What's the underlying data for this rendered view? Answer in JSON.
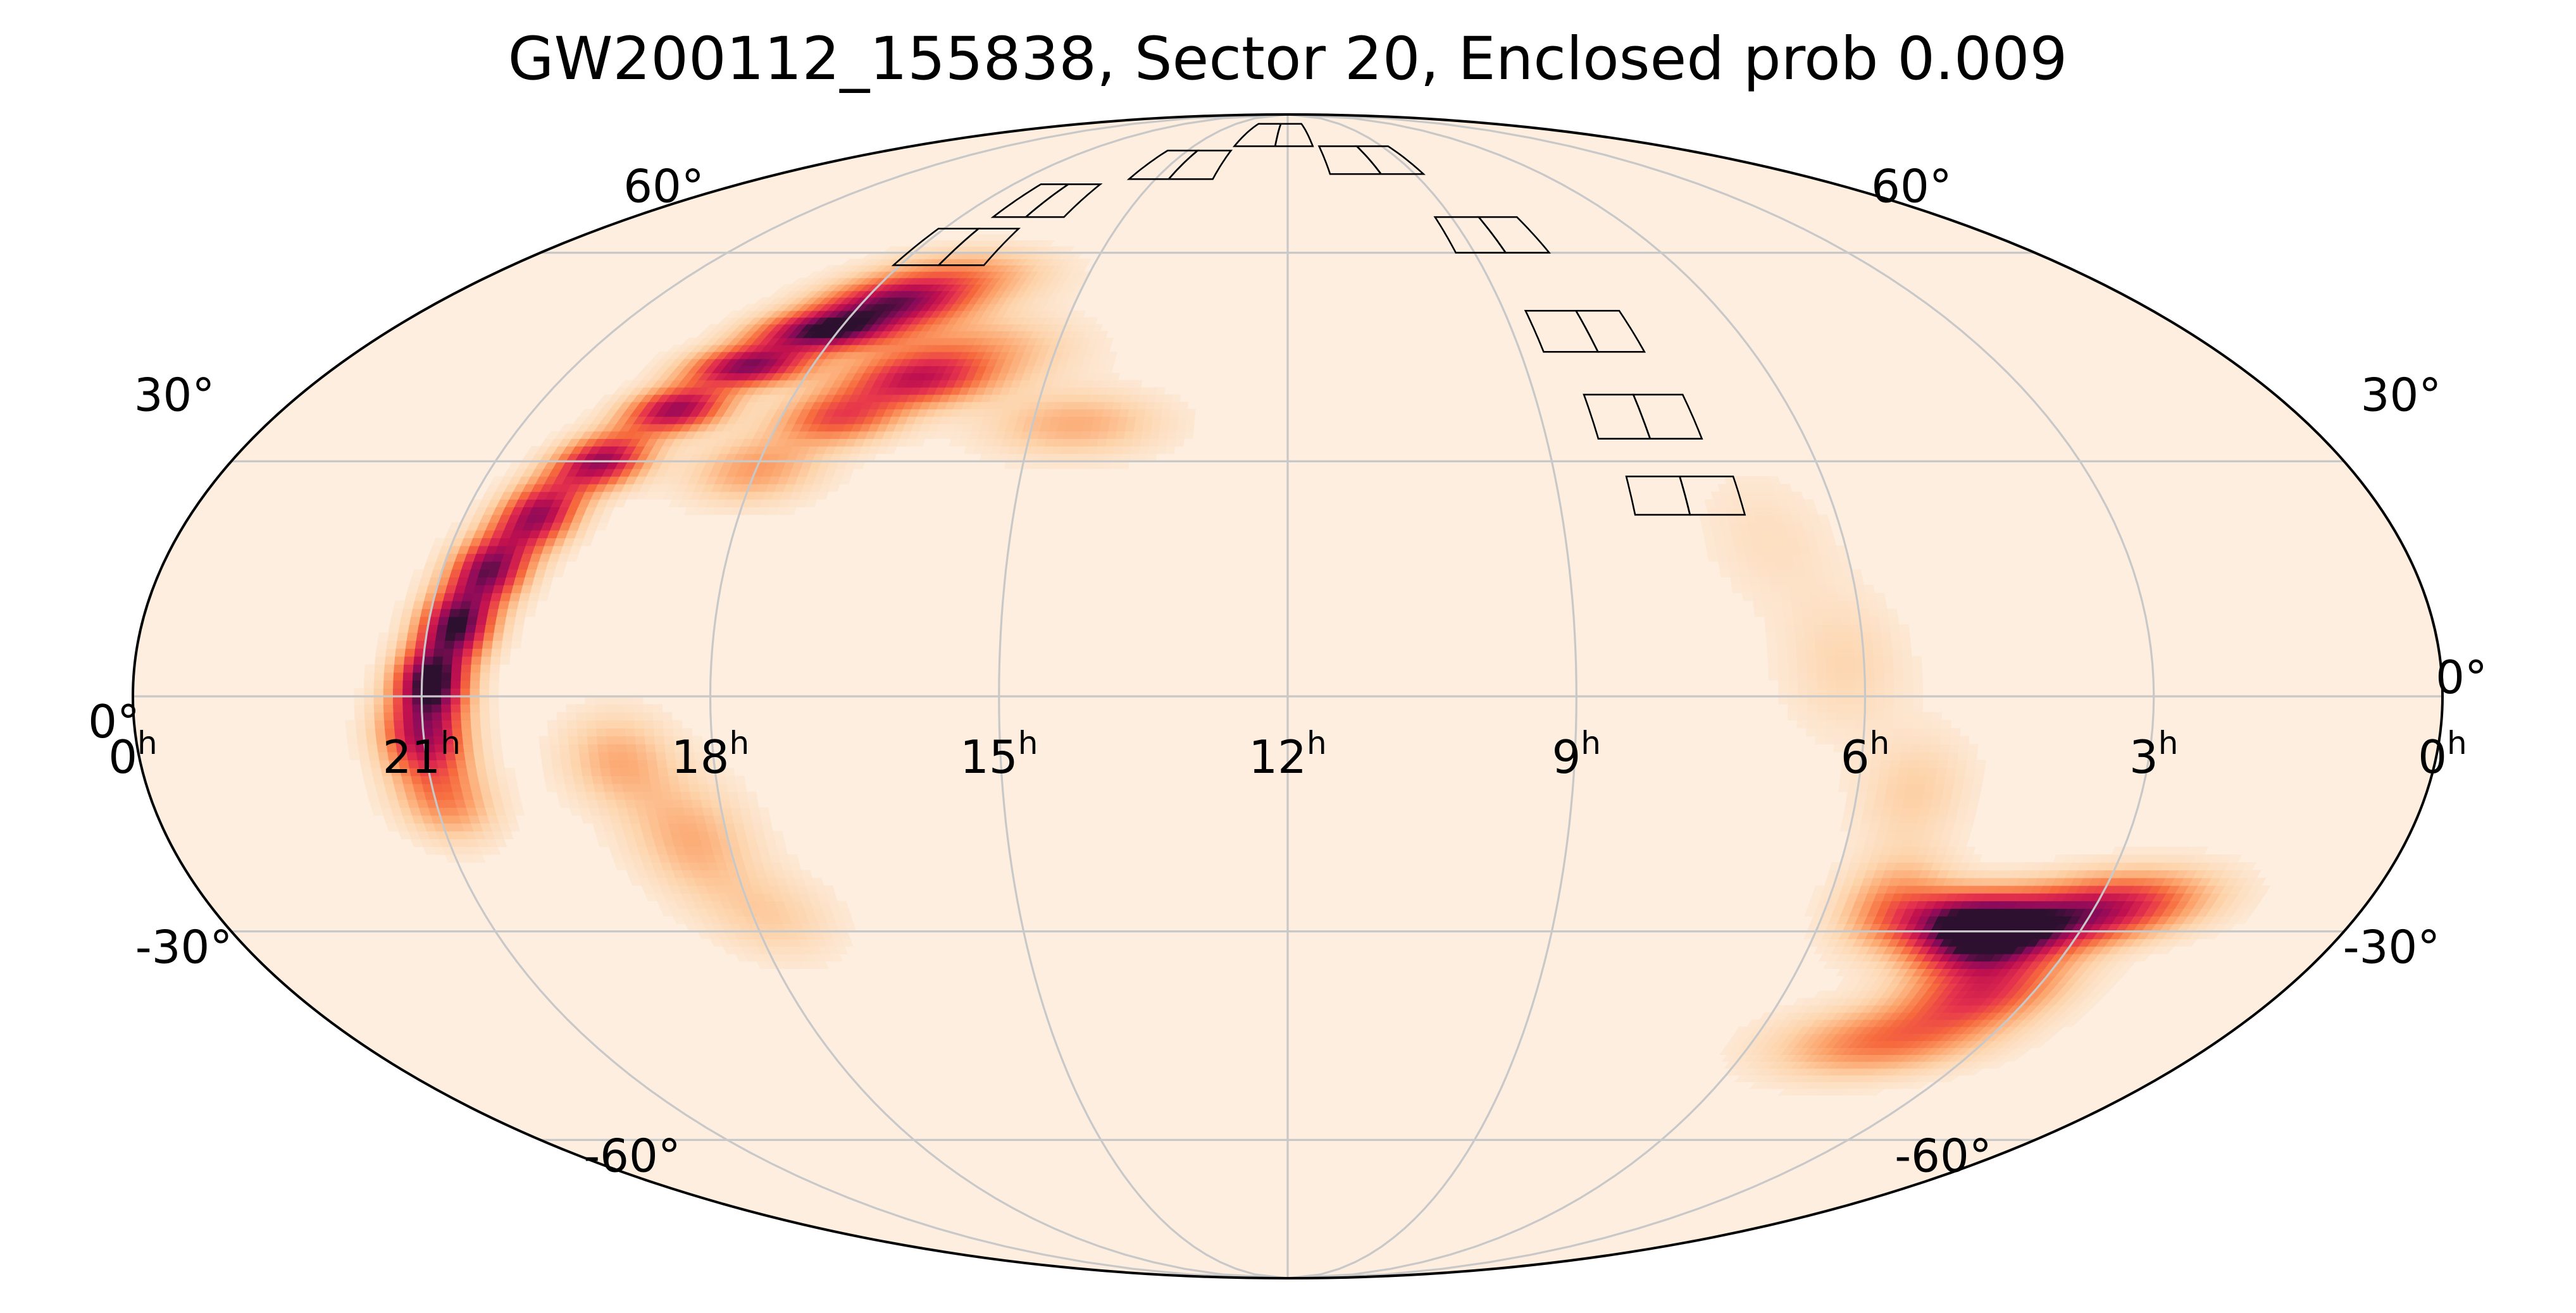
{
  "chart_data": {
    "type": "heatmap",
    "projection": "mollweide",
    "title": "GW200112_155838, Sector 20, Enclosed prob 0.009",
    "xlabel": "",
    "ylabel": "",
    "grid": true,
    "ra_ticks": [
      {
        "hours": 0,
        "label": "0",
        "sup": "h",
        "pos": "left"
      },
      {
        "hours": 21,
        "label": "21",
        "sup": "h"
      },
      {
        "hours": 18,
        "label": "18",
        "sup": "h"
      },
      {
        "hours": 15,
        "label": "15",
        "sup": "h"
      },
      {
        "hours": 12,
        "label": "12",
        "sup": "h"
      },
      {
        "hours": 9,
        "label": "9",
        "sup": "h"
      },
      {
        "hours": 6,
        "label": "6",
        "sup": "h"
      },
      {
        "hours": 3,
        "label": "3",
        "sup": "h"
      },
      {
        "hours": 0,
        "label": "0",
        "sup": "h",
        "pos": "right"
      }
    ],
    "dec_ticks": [
      {
        "deg": 60,
        "label": "60°"
      },
      {
        "deg": 30,
        "label": "30°"
      },
      {
        "deg": 0,
        "label": "0°"
      },
      {
        "deg": -30,
        "label": "-30°"
      },
      {
        "deg": -60,
        "label": "-60°"
      }
    ],
    "colormap": [
      "#fdeee0",
      "#fdd3aa",
      "#fca36b",
      "#f6693d",
      "#e5324d",
      "#c0104f",
      "#8a0b5a",
      "#2d1030"
    ],
    "probability_blobs": [
      {
        "ra": 17.0,
        "dec": 56,
        "sra": 0.9,
        "sdec": 3,
        "w": 0.35
      },
      {
        "ra": 17.6,
        "dec": 52,
        "sra": 0.7,
        "sdec": 2.5,
        "w": 0.75
      },
      {
        "ra": 18.2,
        "dec": 48,
        "sra": 0.6,
        "sdec": 2.0,
        "w": 0.9
      },
      {
        "ra": 18.8,
        "dec": 43,
        "sra": 0.5,
        "sdec": 2.0,
        "w": 0.85
      },
      {
        "ra": 19.3,
        "dec": 37,
        "sra": 0.4,
        "sdec": 2.2,
        "w": 0.8
      },
      {
        "ra": 19.8,
        "dec": 30,
        "sra": 0.35,
        "sdec": 2.5,
        "w": 0.8
      },
      {
        "ra": 20.2,
        "dec": 23,
        "sra": 0.3,
        "sdec": 3,
        "w": 0.8
      },
      {
        "ra": 20.5,
        "dec": 16,
        "sra": 0.28,
        "sdec": 3,
        "w": 0.85
      },
      {
        "ra": 20.7,
        "dec": 9,
        "sra": 0.26,
        "sdec": 3,
        "w": 0.95
      },
      {
        "ra": 20.9,
        "dec": 2,
        "sra": 0.25,
        "sdec": 3,
        "w": 1.0
      },
      {
        "ra": 21.0,
        "dec": -5,
        "sra": 0.3,
        "sdec": 3.5,
        "w": 0.75
      },
      {
        "ra": 20.9,
        "dec": -13,
        "sra": 0.35,
        "sdec": 3.5,
        "w": 0.35
      },
      {
        "ra": 16.2,
        "dec": 45,
        "sra": 0.9,
        "sdec": 3.5,
        "w": 0.3
      },
      {
        "ra": 16.6,
        "dec": 41,
        "sra": 0.6,
        "sdec": 2.5,
        "w": 0.55
      },
      {
        "ra": 17.3,
        "dec": 36,
        "sra": 0.5,
        "sdec": 2.5,
        "w": 0.5
      },
      {
        "ra": 18.0,
        "dec": 29,
        "sra": 0.5,
        "sdec": 3,
        "w": 0.3
      },
      {
        "ra": 14.5,
        "dec": 35,
        "sra": 0.7,
        "sdec": 3,
        "w": 0.25
      },
      {
        "ra": 19.0,
        "dec": -8,
        "sra": 0.4,
        "sdec": 4,
        "w": 0.25
      },
      {
        "ra": 18.4,
        "dec": -18,
        "sra": 0.45,
        "sdec": 5,
        "w": 0.25
      },
      {
        "ra": 17.8,
        "dec": -28,
        "sra": 0.5,
        "sdec": 4,
        "w": 0.15
      },
      {
        "ra": 4.0,
        "dec": -31,
        "sra": 0.55,
        "sdec": 3.0,
        "w": 0.95
      },
      {
        "ra": 4.5,
        "dec": -28,
        "sra": 0.5,
        "sdec": 2.5,
        "w": 0.6
      },
      {
        "ra": 3.2,
        "dec": -28,
        "sra": 0.6,
        "sdec": 3.0,
        "w": 0.6
      },
      {
        "ra": 2.5,
        "dec": -26,
        "sra": 0.6,
        "sdec": 3,
        "w": 0.35
      },
      {
        "ra": 3.6,
        "dec": -38,
        "sra": 0.6,
        "sdec": 3.5,
        "w": 0.55
      },
      {
        "ra": 4.3,
        "dec": -45,
        "sra": 0.9,
        "sdec": 3.5,
        "w": 0.4
      },
      {
        "ra": 5.3,
        "dec": -26,
        "sra": 0.4,
        "sdec": 4,
        "w": 0.3
      },
      {
        "ra": 5.4,
        "dec": -12,
        "sra": 0.4,
        "sdec": 5,
        "w": 0.15
      },
      {
        "ra": 6.2,
        "dec": 4,
        "sra": 0.45,
        "sdec": 6,
        "w": 0.12
      },
      {
        "ra": 6.8,
        "dec": 20,
        "sra": 0.5,
        "sdec": 6,
        "w": 0.08
      }
    ],
    "tess_ccds": [
      {
        "ra0": 16.8,
        "ra1": 17.4,
        "dec0": 66,
        "dec1": 72
      },
      {
        "ra0": 16.1,
        "ra1": 16.8,
        "dec0": 66,
        "dec1": 72
      },
      {
        "ra0": 17.4,
        "ra1": 18.1,
        "dec0": 58,
        "dec1": 64
      },
      {
        "ra0": 16.7,
        "ra1": 17.4,
        "dec0": 58,
        "dec1": 64
      },
      {
        "ra0": 14.7,
        "ra1": 15.6,
        "dec0": 73,
        "dec1": 79
      },
      {
        "ra0": 13.7,
        "ra1": 14.7,
        "dec0": 73,
        "dec1": 79
      },
      {
        "ra0": 12.4,
        "ra1": 13.7,
        "dec0": 80,
        "dec1": 86
      },
      {
        "ra0": 11.2,
        "ra1": 12.4,
        "dec0": 80,
        "dec1": 86
      },
      {
        "ra0": 9.8,
        "ra1": 11.0,
        "dec0": 74,
        "dec1": 80
      },
      {
        "ra0": 8.8,
        "ra1": 9.8,
        "dec0": 74,
        "dec1": 80
      },
      {
        "ra0": 8.5,
        "ra1": 9.3,
        "dec0": 60,
        "dec1": 66
      },
      {
        "ra0": 7.8,
        "ra1": 8.5,
        "dec0": 60,
        "dec1": 66
      },
      {
        "ra0": 8.0,
        "ra1": 8.7,
        "dec0": 45,
        "dec1": 51
      },
      {
        "ra0": 7.4,
        "ra1": 8.0,
        "dec0": 45,
        "dec1": 51
      },
      {
        "ra0": 7.8,
        "ra1": 8.4,
        "dec0": 33,
        "dec1": 39
      },
      {
        "ra0": 7.2,
        "ra1": 7.8,
        "dec0": 33,
        "dec1": 39
      },
      {
        "ra0": 7.6,
        "ra1": 8.2,
        "dec0": 23,
        "dec1": 28
      },
      {
        "ra0": 7.0,
        "ra1": 7.6,
        "dec0": 23,
        "dec1": 28
      }
    ]
  }
}
